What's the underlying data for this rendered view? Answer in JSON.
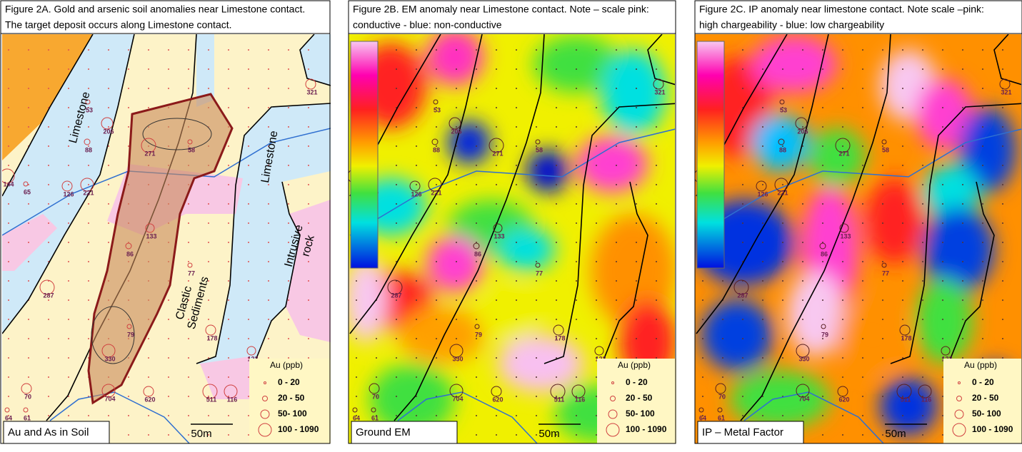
{
  "panels": [
    {
      "title": [
        "Figure 2A. Gold and arsenic soil anomalies near Limestone contact.",
        " The target deposit occurs along Limestone contact."
      ],
      "label": "Au and As in Soil",
      "map_labels": [
        [
          "Limestone"
        ],
        [
          "Limestone"
        ],
        [
          "Intrusive",
          "rock"
        ],
        [
          "Clastic",
          "Sediments"
        ]
      ]
    },
    {
      "title": [
        "Figure 2B. EM anomaly near Limestone contact. Note –  scale pink:",
        "conductive - blue: non-conductive"
      ],
      "label": "Ground EM"
    },
    {
      "title": [
        "Figure 2C. IP anomaly near limestone contact. Note scale –pink:",
        "high chargeability -  blue: low chargeability"
      ],
      "label": "IP – Metal Factor"
    }
  ],
  "samples": [
    "321",
    "53",
    "206",
    "88",
    "271",
    "58",
    "144",
    "65",
    "126",
    "221",
    "133",
    "86",
    "77",
    "287",
    "79",
    "330",
    "178",
    "123",
    "70",
    "704",
    "620",
    "511",
    "116",
    "64",
    "61"
  ],
  "legend": {
    "title": "Au (ppb)",
    "entries": [
      "0 - 20",
      "20 - 50",
      "50- 100",
      "100 - 1090"
    ]
  },
  "scale_bar": "50m"
}
